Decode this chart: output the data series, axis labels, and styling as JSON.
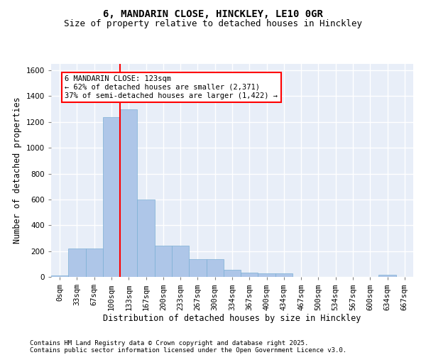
{
  "title1": "6, MANDARIN CLOSE, HINCKLEY, LE10 0GR",
  "title2": "Size of property relative to detached houses in Hinckley",
  "xlabel": "Distribution of detached houses by size in Hinckley",
  "ylabel": "Number of detached properties",
  "bar_values": [
    10,
    220,
    220,
    1240,
    1300,
    600,
    240,
    240,
    135,
    135,
    55,
    35,
    25,
    25,
    0,
    0,
    0,
    0,
    0,
    15,
    0
  ],
  "bin_labels": [
    "0sqm",
    "33sqm",
    "67sqm",
    "100sqm",
    "133sqm",
    "167sqm",
    "200sqm",
    "233sqm",
    "267sqm",
    "300sqm",
    "334sqm",
    "367sqm",
    "400sqm",
    "434sqm",
    "467sqm",
    "500sqm",
    "534sqm",
    "567sqm",
    "600sqm",
    "634sqm",
    "667sqm"
  ],
  "bar_color": "#aec6e8",
  "bar_edge_color": "#7bafd4",
  "vline_color": "red",
  "vline_x": 3.5,
  "annotation_text": "6 MANDARIN CLOSE: 123sqm\n← 62% of detached houses are smaller (2,371)\n37% of semi-detached houses are larger (1,422) →",
  "annotation_box_color": "white",
  "annotation_box_edge_color": "red",
  "ylim": [
    0,
    1650
  ],
  "yticks": [
    0,
    200,
    400,
    600,
    800,
    1000,
    1200,
    1400,
    1600
  ],
  "footnote1": "Contains HM Land Registry data © Crown copyright and database right 2025.",
  "footnote2": "Contains public sector information licensed under the Open Government Licence v3.0.",
  "bg_color": "#e8eef8",
  "grid_color": "white",
  "title1_fontsize": 10,
  "title2_fontsize": 9,
  "xlabel_fontsize": 8.5,
  "ylabel_fontsize": 8.5,
  "tick_fontsize": 7.5,
  "footnote_fontsize": 6.5,
  "annotation_fontsize": 7.5
}
